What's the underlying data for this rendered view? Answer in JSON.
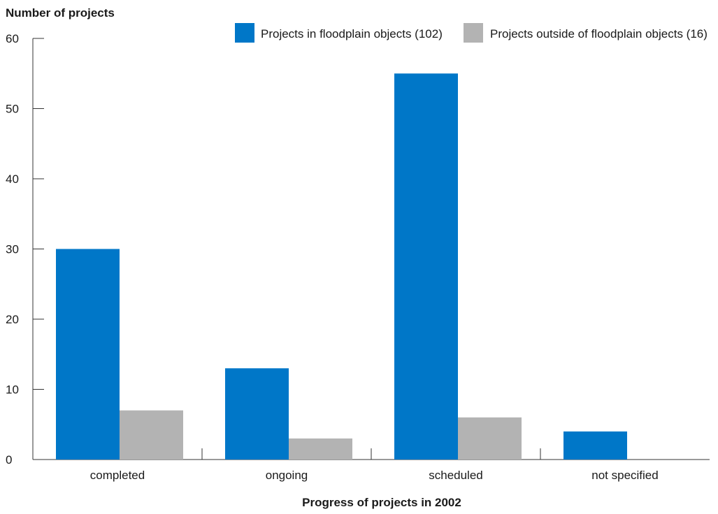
{
  "chart_data": {
    "type": "bar",
    "title": "",
    "ylabel": "Number of projects",
    "xlabel": "Progress of projects in 2002",
    "categories": [
      "completed",
      "ongoing",
      "scheduled",
      "not specified"
    ],
    "ylim": [
      0,
      60
    ],
    "yticks": [
      0,
      10,
      20,
      30,
      40,
      50,
      60
    ],
    "grid": false,
    "legend_position": "top-right",
    "series": [
      {
        "name": "Projects in floodplain objects (102)",
        "color": "#0077c8",
        "values": [
          30,
          13,
          55,
          4
        ]
      },
      {
        "name": "Projects outside of floodplain objects (16)",
        "color": "#b3b3b3",
        "values": [
          7,
          3,
          6,
          0
        ]
      }
    ]
  }
}
